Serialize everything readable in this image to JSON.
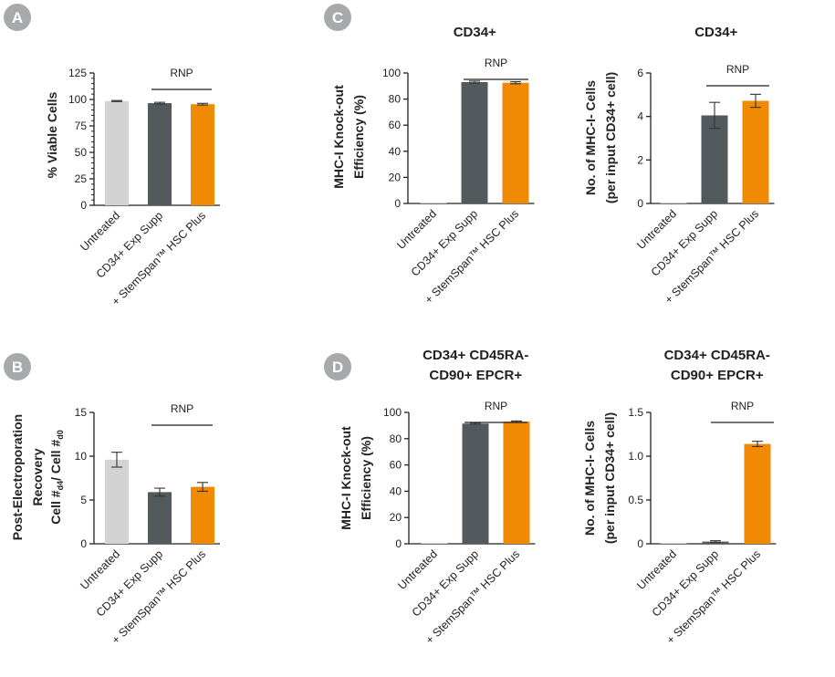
{
  "panel_labels": [
    "A",
    "B",
    "C",
    "D"
  ],
  "colors": {
    "untreated": "#d3d3d3",
    "exp_supp": "#535a5e",
    "hsc_plus": "#f08a05",
    "badge": "#a7a9ab",
    "axis": "#222222"
  },
  "rnp_label": "RNP",
  "chart_data": [
    {
      "id": "A",
      "type": "bar",
      "title": "",
      "categories": [
        "Untreated",
        "CD34+ Exp Supp",
        "+ StemSpan™ HSC Plus"
      ],
      "values": [
        98.5,
        96.5,
        95.5
      ],
      "errors": [
        0.5,
        0.8,
        0.8
      ],
      "ylabel_lines": [
        "% Viable Cells"
      ],
      "ylim": [
        0,
        125
      ],
      "ticks": [
        0,
        25,
        50,
        75,
        100,
        125
      ],
      "tick_labels": [
        "0",
        "25",
        "50",
        "75",
        "100",
        "125"
      ]
    },
    {
      "id": "C1",
      "type": "bar",
      "title": "CD34+",
      "categories": [
        "Untreated",
        "CD34+ Exp Supp",
        "+ StemSpan™ HSC Plus"
      ],
      "values": [
        0.3,
        93,
        92.5
      ],
      "errors": [
        0,
        0.8,
        0.8
      ],
      "ylabel_lines": [
        "MHC-I Knock-out",
        "Efficiency (%)"
      ],
      "ylim": [
        0,
        100
      ],
      "ticks": [
        0,
        20,
        40,
        60,
        80,
        100
      ],
      "tick_labels": [
        "0",
        "20",
        "40",
        "60",
        "80",
        "100"
      ]
    },
    {
      "id": "C2",
      "type": "bar",
      "title": "CD34+",
      "categories": [
        "Untreated",
        "CD34+ Exp Supp",
        "+ StemSpan™ HSC Plus"
      ],
      "values": [
        0.02,
        4.05,
        4.72
      ],
      "errors": [
        0,
        0.6,
        0.3
      ],
      "ylabel_lines": [
        "No. of MHC-I- Cells",
        "(per input CD34+ cell)"
      ],
      "ylim": [
        0,
        6
      ],
      "ticks": [
        0,
        2,
        4,
        6
      ],
      "tick_labels": [
        "0",
        "2",
        "4",
        "6"
      ]
    },
    {
      "id": "B",
      "type": "bar",
      "title": "",
      "categories": [
        "Untreated",
        "CD34+ Exp Supp",
        "+ StemSpan™ HSC Plus"
      ],
      "values": [
        9.6,
        5.9,
        6.5
      ],
      "errors": [
        0.85,
        0.45,
        0.5
      ],
      "ylabel_lines": [
        "Post-Electroporation",
        "Recovery",
        "Cell #d4/ Cell #d0"
      ],
      "ylim": [
        0,
        15
      ],
      "ticks": [
        0,
        5,
        10,
        15
      ],
      "tick_labels": [
        "0",
        "5",
        "10",
        "15"
      ]
    },
    {
      "id": "D1",
      "type": "bar",
      "title": "CD34+ CD45RA-\nCD90+ EPCR+",
      "categories": [
        "Untreated",
        "CD34+ Exp Supp",
        "+ StemSpan™ HSC Plus"
      ],
      "values": [
        0.3,
        91.5,
        93
      ],
      "errors": [
        0,
        0.5,
        0.5
      ],
      "ylabel_lines": [
        "MHC-I Knock-out",
        "Efficiency (%)"
      ],
      "ylim": [
        0,
        100
      ],
      "ticks": [
        0,
        20,
        40,
        60,
        80,
        100
      ],
      "tick_labels": [
        "0",
        "20",
        "40",
        "60",
        "80",
        "100"
      ]
    },
    {
      "id": "D2",
      "type": "bar",
      "title": "CD34+ CD45RA-\nCD90+ EPCR+",
      "categories": [
        "Untreated",
        "CD34+ Exp Supp",
        "+ StemSpan™ HSC Plus"
      ],
      "values": [
        0.002,
        0.025,
        1.14
      ],
      "errors": [
        0,
        0.01,
        0.03
      ],
      "ylabel_lines": [
        "No. of MHC-I- Cells",
        "(per input CD34+ cell)"
      ],
      "ylim": [
        0,
        1.5
      ],
      "ticks": [
        0,
        0.5,
        1.0,
        1.5
      ],
      "tick_labels": [
        "0",
        "0.5",
        "1.0",
        "1.5"
      ]
    }
  ]
}
